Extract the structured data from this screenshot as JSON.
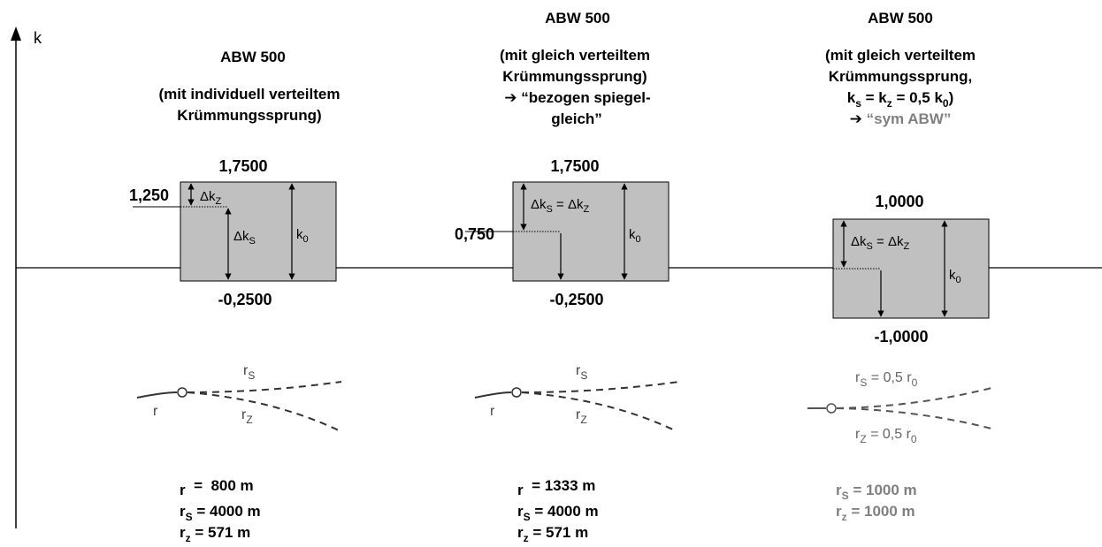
{
  "axis": {
    "label": "k"
  },
  "colors": {
    "box_fill": "#c0c0c0",
    "grey_text": "#808080",
    "line": "#000000"
  },
  "panels": [
    {
      "title": "ABW 500",
      "subtitle": [
        "(mit individuell verteiltem",
        "Krümmungssprung)"
      ],
      "top": "1,7500",
      "bottom": "-0,2500",
      "side": "1,250",
      "dz": "Δk",
      "dz_sub": "Z",
      "ds": "Δk",
      "ds_sub": "S",
      "k0": "k",
      "k0_sub": "0",
      "sketch": {
        "rs": "r",
        "rs_sub": "S",
        "r": "r",
        "rz": "r",
        "rz_sub": "Z"
      },
      "res": [
        {
          "label": "r",
          "sub": "",
          "value": "  =  800 m"
        },
        {
          "label": "r",
          "sub": "S",
          "value": " = 4000 m"
        },
        {
          "label": "r",
          "sub": "z",
          "value": " = 571  m"
        }
      ]
    },
    {
      "title": "ABW 500",
      "subtitle": [
        "(mit gleich verteiltem",
        "Krümmungssprung)",
        "➔ “bezogen spiegel-",
        "gleich”"
      ],
      "top": "1,7500",
      "bottom": "-0,2500",
      "side": "0,750",
      "eq": {
        "a": "Δk",
        "a_sub": "S",
        "mid": " = Δk",
        "b_sub": "Z"
      },
      "k0": "k",
      "k0_sub": "0",
      "sketch": {
        "rs": "r",
        "rs_sub": "S",
        "r": "r",
        "rz": "r",
        "rz_sub": "Z"
      },
      "res": [
        {
          "label": "r",
          "sub": "",
          "value": "  = 1333 m"
        },
        {
          "label": "r",
          "sub": "S",
          "value": " = 4000 m"
        },
        {
          "label": "r",
          "sub": "z",
          "value": " = 571  m"
        }
      ]
    },
    {
      "title": "ABW 500",
      "subtitle": [
        "(mit gleich verteiltem",
        "Krümmungssprung,"
      ],
      "subtitle_eq": {
        "a": "k",
        "a_sub": "s",
        "mid": " = k",
        "b_sub": "z",
        "tail": " = 0,5 k",
        "c_sub": "0",
        "close": ")"
      },
      "subtitle_grey": "“sym ABW”",
      "subtitle_arrow": "➔ ",
      "top": "1,0000",
      "bottom": "-1,0000",
      "eq": {
        "a": "Δk",
        "a_sub": "S",
        "mid": " = Δk",
        "b_sub": "Z"
      },
      "k0": "k",
      "k0_sub": "0",
      "sketch": {
        "rs": "r",
        "rs_sub": "S",
        "rs_tail": " = 0,5 r",
        "rs_tail_sub": "0",
        "rz": "r",
        "rz_sub": "Z",
        "rz_tail": " = 0,5 r",
        "rz_tail_sub": "0"
      },
      "res": [
        {
          "label": "r",
          "sub": "S",
          "value": " = 1000 m"
        },
        {
          "label": "r",
          "sub": "z",
          "value": " = 1000 m"
        }
      ]
    }
  ]
}
